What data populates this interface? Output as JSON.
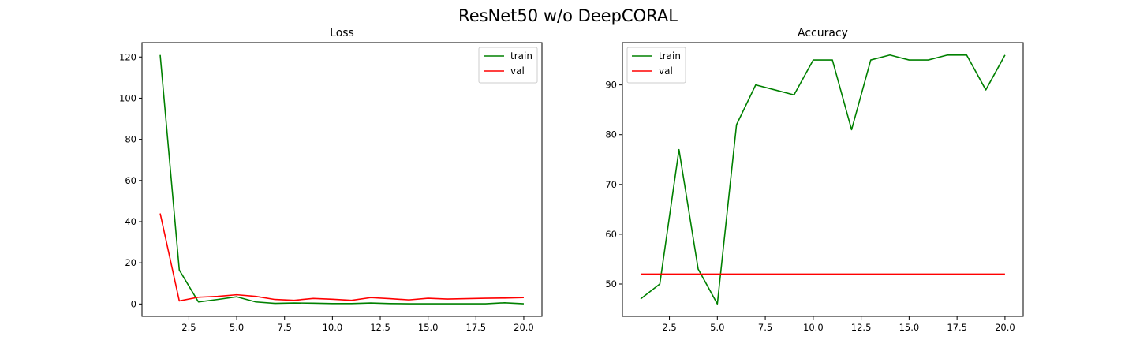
{
  "figure_title": "ResNet50 w/o DeepCORAL",
  "chart_data": [
    {
      "type": "line",
      "title": "Loss",
      "xlabel": "",
      "ylabel": "",
      "xlim": [
        0.05,
        20.95
      ],
      "ylim": [
        -6.0,
        127.0
      ],
      "xticks": [
        2.5,
        5.0,
        7.5,
        10.0,
        12.5,
        15.0,
        17.5,
        20.0
      ],
      "xtick_labels": [
        "2.5",
        "5.0",
        "7.5",
        "10.0",
        "12.5",
        "15.0",
        "17.5",
        "20.0"
      ],
      "yticks": [
        0,
        20,
        40,
        60,
        80,
        100,
        120
      ],
      "ytick_labels": [
        "0",
        "20",
        "40",
        "60",
        "80",
        "100",
        "120"
      ],
      "grid": false,
      "legend_position": "top-right",
      "x": [
        1,
        2,
        3,
        4,
        5,
        6,
        7,
        8,
        9,
        10,
        11,
        12,
        13,
        14,
        15,
        16,
        17,
        18,
        19,
        20
      ],
      "series": [
        {
          "name": "train",
          "color": "#008000",
          "values": [
            121,
            16.5,
            1.0,
            2.2,
            3.5,
            1.0,
            0.3,
            0.5,
            0.4,
            0.2,
            0.2,
            0.5,
            0.2,
            0.1,
            0.1,
            0.1,
            0.1,
            0.1,
            0.6,
            0.1
          ]
        },
        {
          "name": "val",
          "color": "#ff0000",
          "values": [
            44,
            1.5,
            3.3,
            3.7,
            4.5,
            3.7,
            2.2,
            1.8,
            2.7,
            2.3,
            1.8,
            3.1,
            2.6,
            2.0,
            2.8,
            2.4,
            2.6,
            2.8,
            2.9,
            3.1
          ]
        }
      ]
    },
    {
      "type": "line",
      "title": "Accuracy",
      "xlabel": "",
      "ylabel": "",
      "xlim": [
        0.05,
        20.95
      ],
      "ylim": [
        43.5,
        98.5
      ],
      "xticks": [
        2.5,
        5.0,
        7.5,
        10.0,
        12.5,
        15.0,
        17.5,
        20.0
      ],
      "xtick_labels": [
        "2.5",
        "5.0",
        "7.5",
        "10.0",
        "12.5",
        "15.0",
        "17.5",
        "20.0"
      ],
      "yticks": [
        50,
        60,
        70,
        80,
        90
      ],
      "ytick_labels": [
        "50",
        "60",
        "70",
        "80",
        "90"
      ],
      "grid": false,
      "legend_position": "top-left",
      "x": [
        1,
        2,
        3,
        4,
        5,
        6,
        7,
        8,
        9,
        10,
        11,
        12,
        13,
        14,
        15,
        16,
        17,
        18,
        19,
        20
      ],
      "series": [
        {
          "name": "train",
          "color": "#008000",
          "values": [
            47,
            50,
            77,
            53,
            46,
            82,
            90,
            89,
            88,
            95,
            95,
            81,
            95,
            96,
            95,
            95,
            96,
            96,
            89,
            96
          ]
        },
        {
          "name": "val",
          "color": "#ff0000",
          "values": [
            52,
            52,
            52,
            52,
            52,
            52,
            52,
            52,
            52,
            52,
            52,
            52,
            52,
            52,
            52,
            52,
            52,
            52,
            52,
            52
          ]
        }
      ]
    }
  ]
}
